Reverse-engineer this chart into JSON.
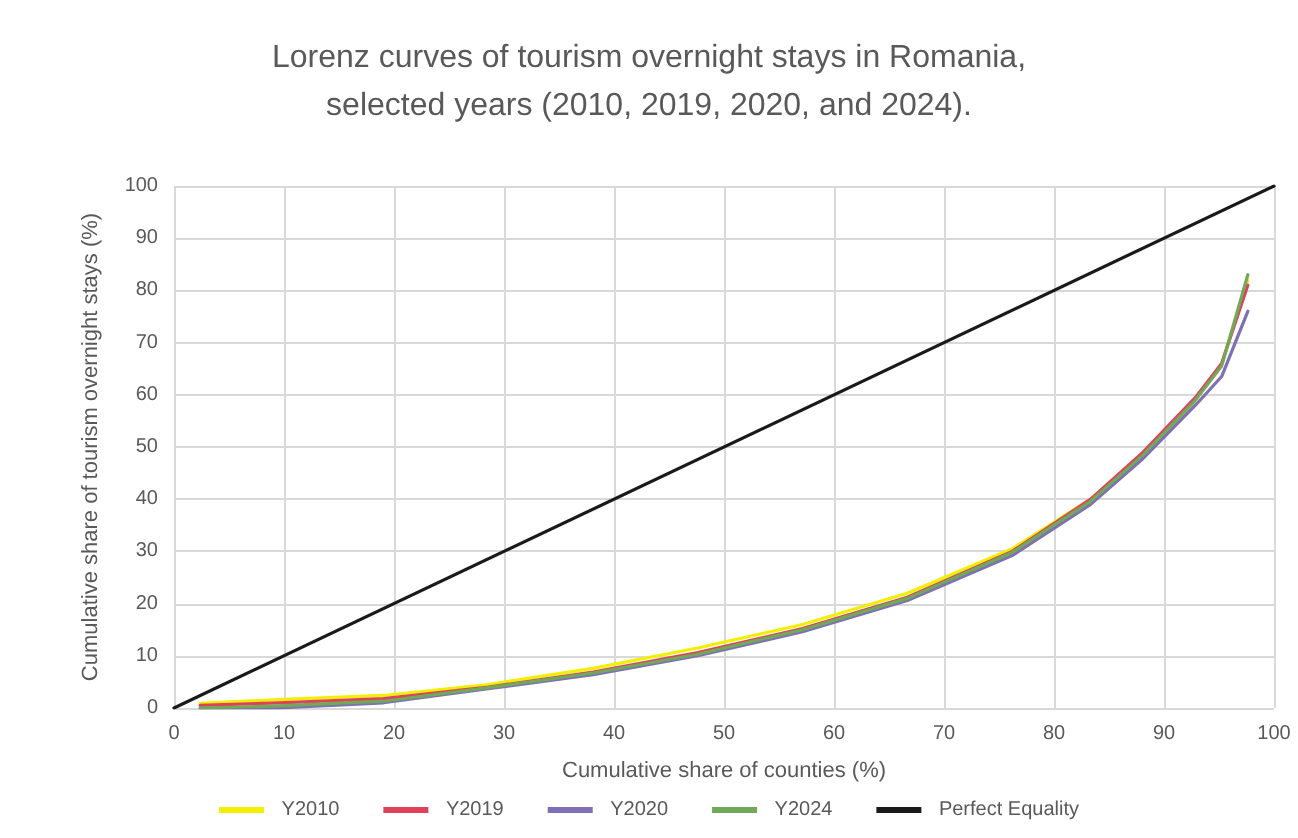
{
  "chart_data": {
    "type": "line",
    "title": "Lorenz curves of tourism overnight stays in Romania,\nselected years (2010, 2019, 2020, and 2024).",
    "xlabel": "Cumulative share of counties (%)",
    "ylabel": "Cumulative share of tourism overnight stays (%)",
    "x": [
      2.38,
      9.52,
      19.05,
      28.57,
      38.1,
      47.62,
      57.14,
      66.67,
      76.19,
      83.33,
      88.1,
      92.86,
      95.24,
      97.62
    ],
    "series": [
      {
        "name": "Y2010",
        "color": "#f0f000",
        "values": [
          0.9,
          1.6,
          2.4,
          4.5,
          7.6,
          11.5,
          16,
          22,
          30.5,
          40,
          48.5,
          59,
          66,
          82
        ]
      },
      {
        "name": "Y2019",
        "color": "#e0405a",
        "values": [
          0.5,
          1,
          1.8,
          4,
          6.9,
          10.6,
          15.2,
          21.2,
          30,
          40,
          49,
          59.5,
          66,
          81
        ]
      },
      {
        "name": "Y2020",
        "color": "#7f6fb5",
        "values": [
          0,
          0,
          1,
          3.7,
          6.4,
          10,
          14.6,
          20.6,
          29.2,
          39,
          47.8,
          58,
          63.5,
          76
        ]
      },
      {
        "name": "Y2024",
        "color": "#72a85a",
        "values": [
          0,
          0.4,
          1.3,
          3.9,
          6.7,
          10.3,
          15,
          21,
          29.8,
          39.6,
          48.5,
          59,
          65.5,
          83
        ]
      },
      {
        "name": "Perfect Equality",
        "color": "#1a1a1a",
        "x": [
          0,
          100
        ],
        "values": [
          0,
          100
        ]
      }
    ],
    "xlim": [
      0,
      100
    ],
    "xticks": [
      0,
      10,
      20,
      30,
      40,
      50,
      60,
      70,
      80,
      90,
      100
    ],
    "ylim": [
      0,
      100
    ],
    "yticks": [
      0,
      10,
      20,
      30,
      40,
      50,
      60,
      70,
      80,
      90,
      100
    ],
    "grid": true,
    "legend": "bottom",
    "marker": "none",
    "line_style": "solid"
  }
}
